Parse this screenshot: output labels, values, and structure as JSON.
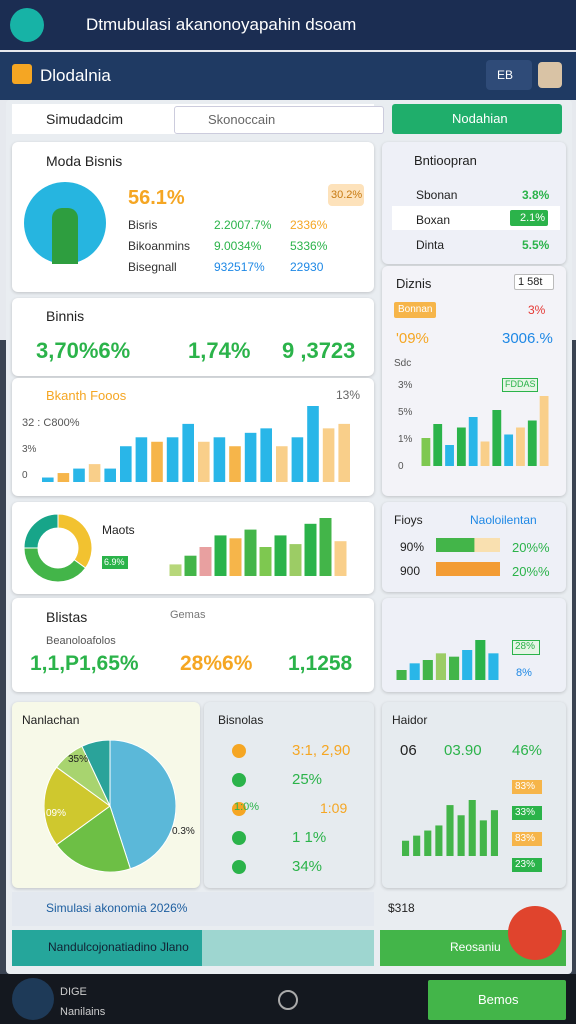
{
  "topbar": {
    "title": "Dtmubulasi akanonoyapahin dsoam"
  },
  "appbar": {
    "title": "Dlodalnia",
    "menu": "EB"
  },
  "toolbar": {
    "label": "Simudadcim",
    "search": "Skonoccain",
    "button": "Nodahian"
  },
  "model_card": {
    "title": "Moda Bisnis",
    "headline": "56.1%",
    "badge": "30.2%",
    "rows": [
      [
        "Bisris",
        "2.2007.7%",
        "2336%"
      ],
      [
        "Bikoanmins",
        "9.0034%",
        "5336%"
      ],
      [
        "Bisegnall",
        "932517%",
        "22930"
      ]
    ]
  },
  "side_card": {
    "title": "Bntioopran",
    "rows": [
      [
        "Sbonan",
        "3.8%"
      ],
      [
        "Boxan",
        "2.1%"
      ],
      [
        "Dinta",
        "5.5%"
      ]
    ]
  },
  "business_card": {
    "title": "Binnis",
    "values": [
      "3,70%6%",
      "1,74%",
      "9 ,3723"
    ]
  },
  "trend_card": {
    "title": "Bkanth Fooos",
    "badge": "13%",
    "subtitle": "32 : C800%",
    "ticks": [
      "3%",
      "0"
    ],
    "bars": [
      1,
      2,
      3,
      4,
      3,
      8,
      10,
      9,
      10,
      13,
      9,
      10,
      8,
      11,
      12,
      8,
      10,
      17,
      12,
      13
    ],
    "colors": [
      "#29b6e8",
      "#f6b54a",
      "#29b6e8",
      "#f9cf8a",
      "#29b6e8",
      "#29b6e8",
      "#29b6e8",
      "#f6b54a",
      "#29b6e8",
      "#29b6e8",
      "#f9cf8a",
      "#29b6e8",
      "#f6b54a",
      "#29b6e8",
      "#29b6e8",
      "#f9cf8a",
      "#29b6e8",
      "#29b6e8",
      "#f9cf8a",
      "#f9cf8a"
    ]
  },
  "diznis_card": {
    "title": "Diznis",
    "badge": "1 58t",
    "row_label": "Bonnan",
    "row_value": "3%",
    "left": "'09%",
    "right": "3006.%",
    "caption": "Sdc",
    "pill": "FDDAS",
    "ticks": [
      "3%",
      "5%",
      "1%",
      "0"
    ],
    "bars": [
      8,
      12,
      6,
      11,
      14,
      7,
      16,
      9,
      11,
      13,
      20
    ],
    "colors": [
      "#7ec850",
      "#2bb34a",
      "#29b6e8",
      "#2bb34a",
      "#29b6e8",
      "#f9cf8a",
      "#2bb34a",
      "#29b6e8",
      "#f9cf8a",
      "#2bb34a",
      "#f9cf8a"
    ]
  },
  "donut_card": {
    "title": "Maots",
    "pill": "6.9%",
    "segments": [
      35,
      40,
      25
    ],
    "segment_colors": [
      "#f2c230",
      "#43b549",
      "#17a589"
    ],
    "bars": [
      4,
      7,
      10,
      14,
      13,
      16,
      10,
      14,
      11,
      18,
      20,
      12
    ],
    "colors": [
      "#b7d77a",
      "#43b549",
      "#e8a0a0",
      "#2bb34a",
      "#f6b54a",
      "#43b549",
      "#7ec850",
      "#2bb34a",
      "#9ccc65",
      "#2bb34a",
      "#43b549",
      "#f9cf8a"
    ]
  },
  "progress_card": {
    "title": "Fioys",
    "link": "Naoloilentan",
    "rows": [
      [
        "90%",
        "20%%"
      ],
      [
        "900",
        "20%%"
      ]
    ],
    "fills": [
      60,
      100
    ],
    "fill_colors": [
      "#43b549",
      "#f39c34"
    ]
  },
  "stats_card": {
    "title": "Blistas",
    "filter": "Gemas",
    "subtitle": "Beanoloafolos",
    "values": [
      "1,1,P1,65%",
      "28%6%",
      "1,1258"
    ]
  },
  "mini_card": {
    "pill": "28%",
    "pill2": "8%",
    "bars": [
      3,
      5,
      6,
      8,
      7,
      9,
      12,
      8
    ],
    "colors": [
      "#43b549",
      "#29b6e8",
      "#43b549",
      "#9ccc65",
      "#43b549",
      "#29b6e8",
      "#2bb34a",
      "#29b6e8"
    ]
  },
  "pie_card": {
    "title": "Nanlachan",
    "labels": [
      "35%",
      "09%",
      "0.3%"
    ],
    "slices": [
      45,
      20,
      20,
      8,
      7
    ],
    "slice_colors": [
      "#5bb8d9",
      "#6dbf45",
      "#cfc82e",
      "#a8d46f",
      "#2aa39a"
    ]
  },
  "list_card": {
    "title": "Bisnolas",
    "rows": [
      [
        "3:1, 2,90",
        ""
      ],
      [
        "25%",
        ""
      ],
      [
        "1:0%",
        "1:09"
      ],
      [
        "1 1%",
        ""
      ],
      [
        "34%",
        ""
      ]
    ]
  },
  "haidor_card": {
    "title": "Haidor",
    "head": [
      "06",
      "03.90",
      "46%"
    ],
    "pills": [
      "83%",
      "33%",
      "83%",
      "23%"
    ],
    "bars": [
      3,
      4,
      5,
      6,
      10,
      8,
      11,
      7,
      9
    ]
  },
  "footer": {
    "caption": "Simulasi akonomia 2026%",
    "amount": "$318",
    "banner": "Nandulcojonatiadino Jlano",
    "button": "Reosaniu"
  },
  "navbar": {
    "label": "DIGE",
    "sublabel": "Nanilains",
    "button": "Bemos"
  }
}
